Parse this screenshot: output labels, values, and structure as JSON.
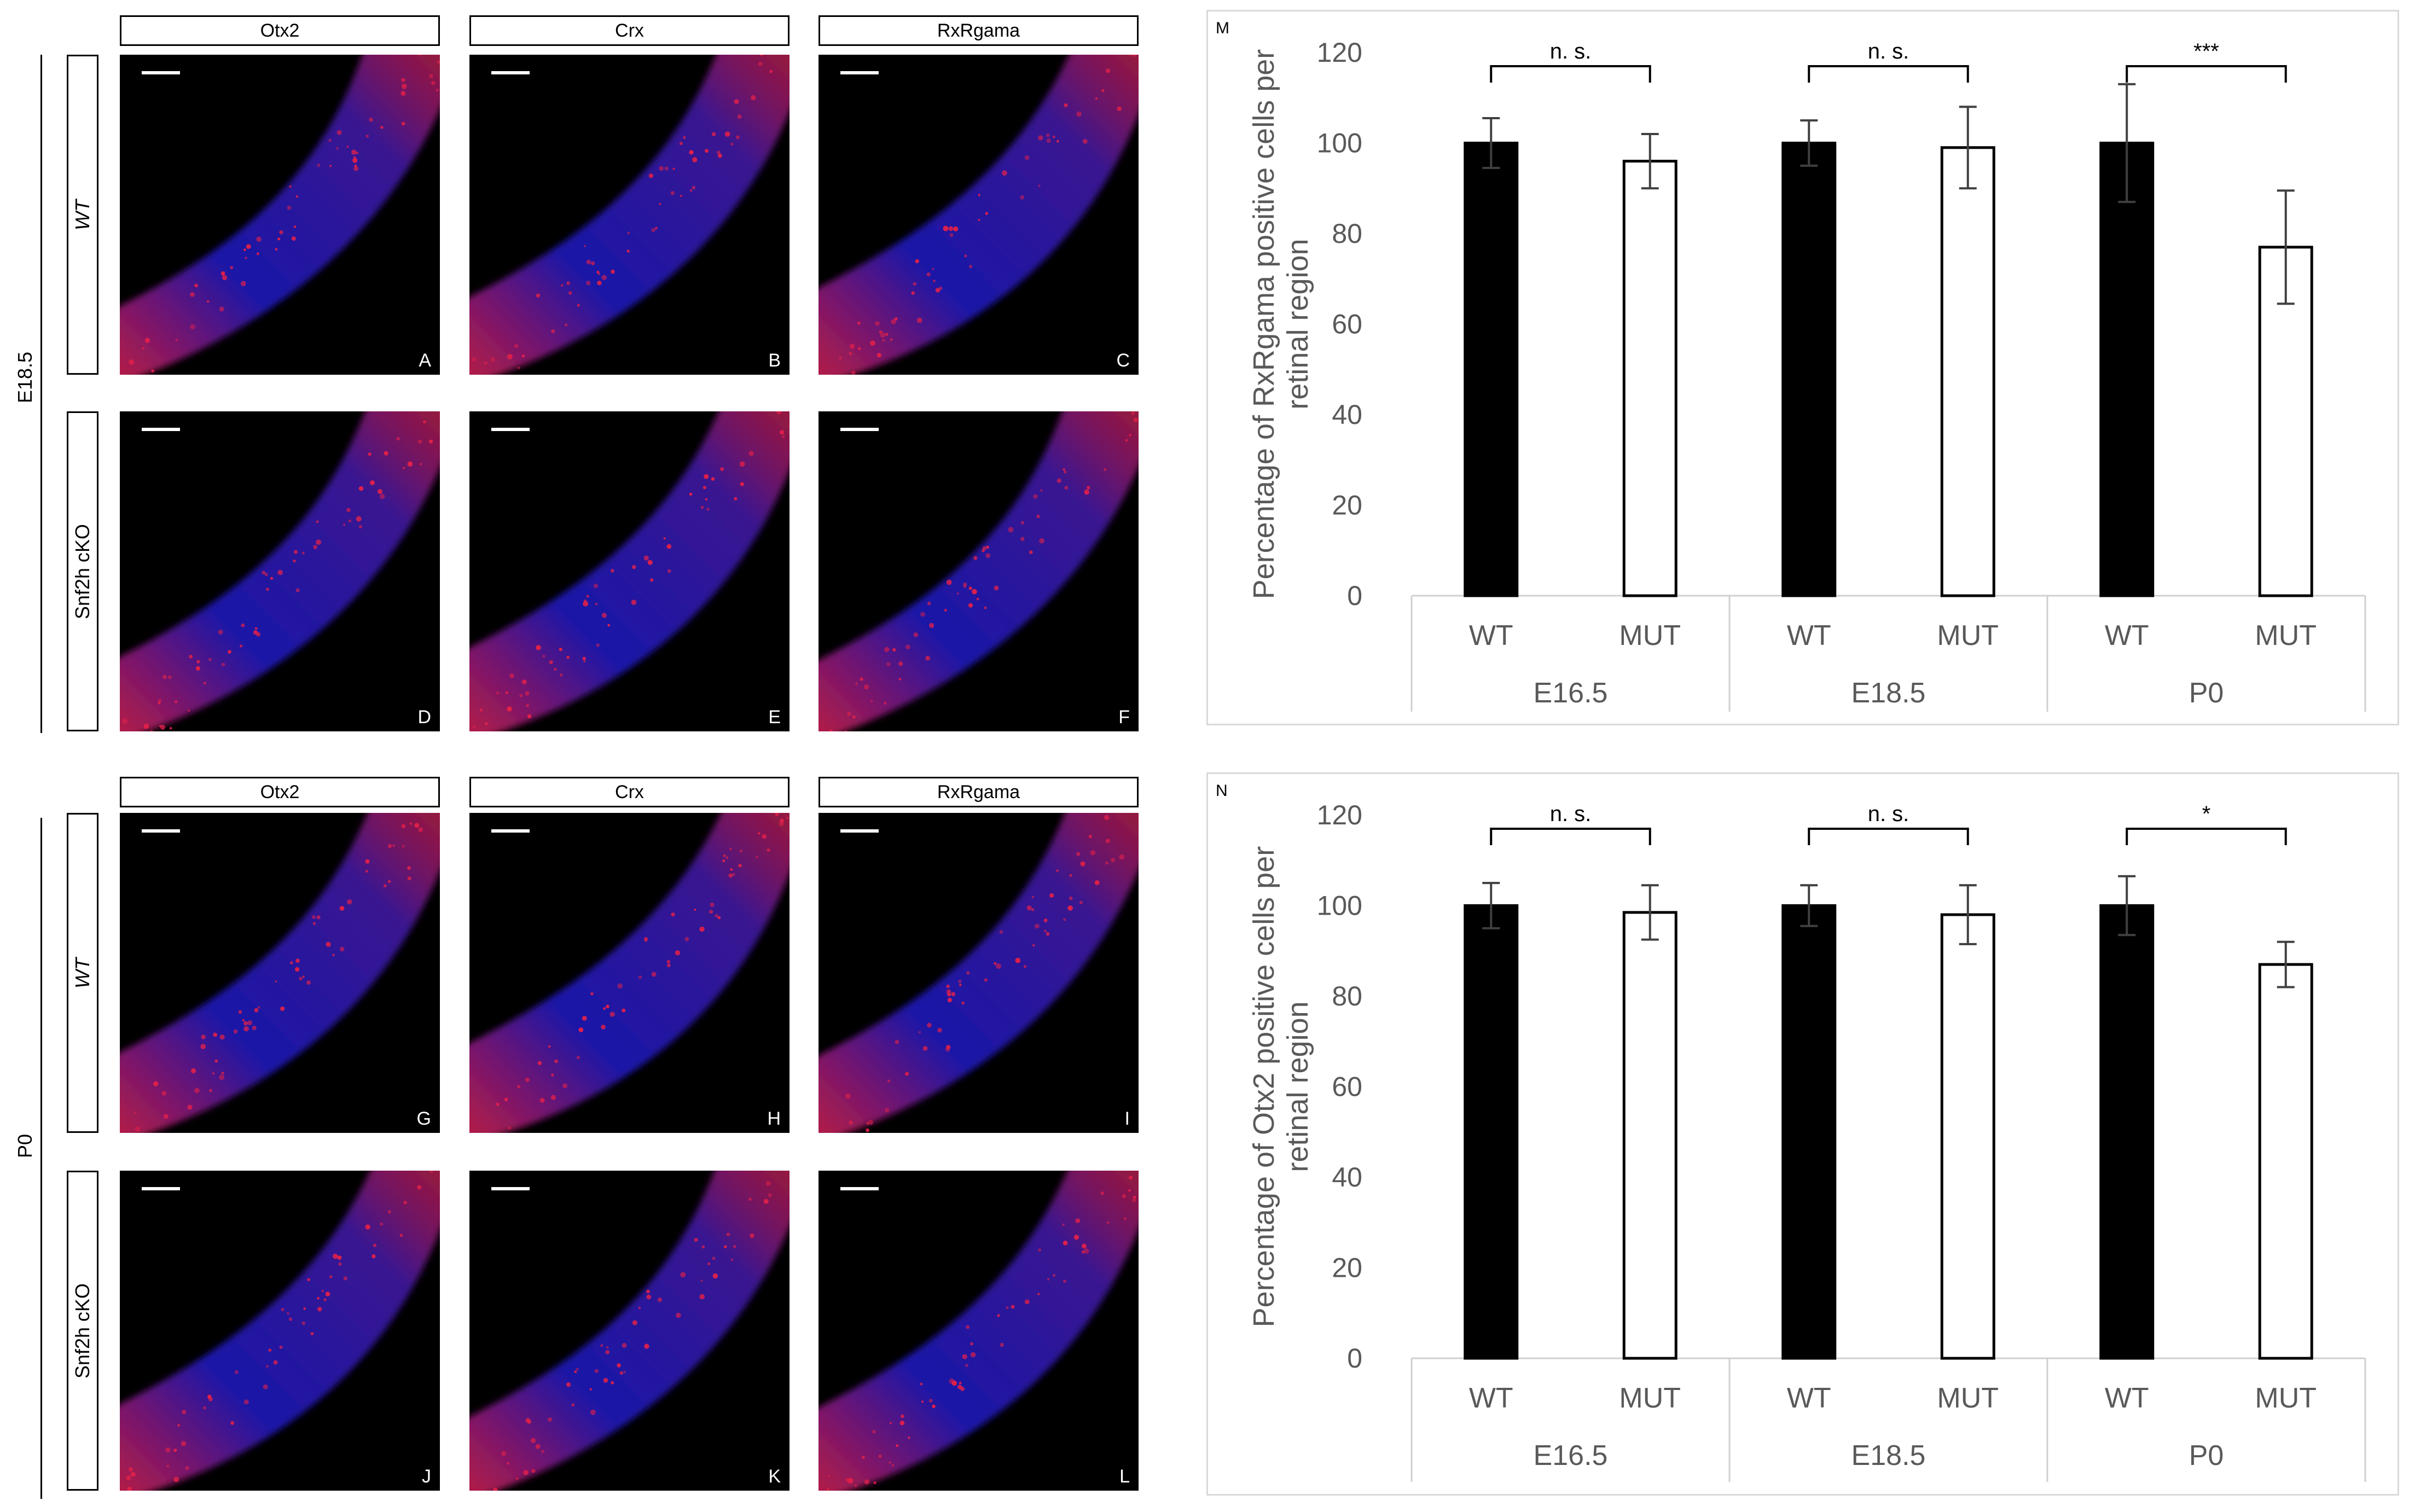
{
  "figure": {
    "columns": [
      "Otx2",
      "Crx",
      "RxRgama"
    ],
    "stages": [
      "E18.5",
      "P0"
    ],
    "genotypes": [
      "WT",
      "Snf2h cKO"
    ],
    "panel_letters": [
      "A",
      "B",
      "C",
      "D",
      "E",
      "F",
      "G",
      "H",
      "I",
      "J",
      "K",
      "L"
    ],
    "colors": {
      "nuclear": "#1a12a8",
      "stain": "#e0204a",
      "background": "#000000"
    }
  },
  "chart_data": [
    {
      "type": "bar",
      "panel_label": "M",
      "ylabel": "Percentage of RxRgama positive cells per retinal region",
      "ylabel_lines": [
        "Percentage of RxRgama positive cells per",
        "retinal region"
      ],
      "ylim": [
        0,
        120
      ],
      "yticks": [
        0,
        20,
        40,
        60,
        80,
        100,
        120
      ],
      "groups": [
        "E16.5",
        "E18.5",
        "P0"
      ],
      "categories": [
        "WT",
        "MUT",
        "WT",
        "MUT",
        "WT",
        "MUT"
      ],
      "values": [
        100,
        96,
        100,
        99,
        100,
        77
      ],
      "errors": [
        5.5,
        6,
        5,
        9,
        13,
        12.5
      ],
      "bar_fills": [
        "#000000",
        "#ffffff",
        "#000000",
        "#ffffff",
        "#000000",
        "#ffffff"
      ],
      "significance": [
        "n. s.",
        "n. s.",
        "***"
      ],
      "grid": false
    },
    {
      "type": "bar",
      "panel_label": "N",
      "ylabel": "Percentage of Otx2 positive cells per retinal region",
      "ylabel_lines": [
        "Percentage of Otx2 positive cells per",
        "retinal region"
      ],
      "ylim": [
        0,
        120
      ],
      "yticks": [
        0,
        20,
        40,
        60,
        80,
        100,
        120
      ],
      "groups": [
        "E16.5",
        "E18.5",
        "P0"
      ],
      "categories": [
        "WT",
        "MUT",
        "WT",
        "MUT",
        "WT",
        "MUT"
      ],
      "values": [
        100,
        98.5,
        100,
        98,
        100,
        87
      ],
      "errors": [
        5,
        6,
        4.5,
        6.5,
        6.5,
        5
      ],
      "bar_fills": [
        "#000000",
        "#ffffff",
        "#000000",
        "#ffffff",
        "#000000",
        "#ffffff"
      ],
      "significance": [
        "n. s.",
        "n. s.",
        "*"
      ],
      "grid": false
    }
  ]
}
